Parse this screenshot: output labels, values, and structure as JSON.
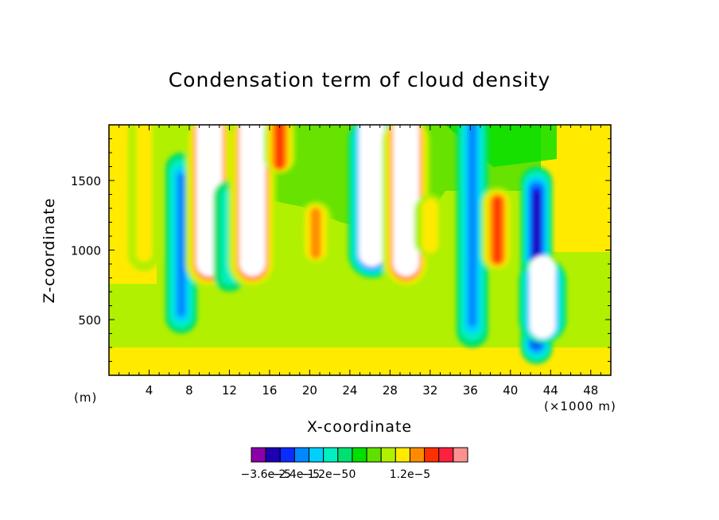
{
  "chart_data": {
    "type": "heatmap",
    "title": "Condensation term of cloud density",
    "xlabel": "X-coordinate",
    "ylabel": "Z-coordinate",
    "x_unit": "(m)",
    "x_scale_label": "(×1000 m)",
    "xlim": [
      0,
      50
    ],
    "ylim": [
      100,
      1900
    ],
    "x_ticks": [
      "4",
      "8",
      "12",
      "16",
      "20",
      "24",
      "28",
      "32",
      "36",
      "40",
      "44",
      "48"
    ],
    "x_tick_values": [
      4,
      8,
      12,
      16,
      20,
      24,
      28,
      32,
      36,
      40,
      44,
      48
    ],
    "y_ticks": [
      "500",
      "1000",
      "1500"
    ],
    "y_tick_values": [
      500,
      1000,
      1500
    ],
    "colorbar": {
      "labels": [
        "−3.6e−5",
        "−2.4e−5",
        "−1.2e−5",
        "0",
        "1.2e−5"
      ],
      "label_values": [
        -3.6e-05,
        -2.4e-05,
        -1.2e-05,
        0,
        1.2e-05
      ],
      "levels": [
        -4.2e-05,
        -3.6e-05,
        -3e-05,
        -2.4e-05,
        -1.8e-05,
        -1.2e-05,
        -6e-06,
        0,
        3e-06,
        6e-06,
        9e-06,
        1.2e-05,
        1.5e-05,
        1.8e-05,
        2.1e-05
      ],
      "colors": [
        "#8b00a8",
        "#1c00b4",
        "#0a2cff",
        "#0088ff",
        "#00d0ff",
        "#00f0c0",
        "#00e070",
        "#00e000",
        "#60e000",
        "#b0f000",
        "#ffea00",
        "#ff8c00",
        "#ff3000",
        "#ff2040",
        "#ff9090"
      ]
    },
    "features": [
      {
        "kind": "positive_column",
        "x": 3.5,
        "z_top": 1900,
        "z_bottom": 850,
        "value": 1e-05
      },
      {
        "kind": "negative_column",
        "x": 7.2,
        "z_top": 1700,
        "z_bottom": 400,
        "value": -2.5e-05
      },
      {
        "kind": "out_of_range_positive",
        "x": 10.0,
        "z_top": 1900,
        "z_bottom": 730,
        "value": 3e-05
      },
      {
        "kind": "negative_column",
        "x": 12.0,
        "z_top": 1500,
        "z_bottom": 700,
        "value": -1.2e-05
      },
      {
        "kind": "out_of_range_positive",
        "x": 14.3,
        "z_top": 1900,
        "z_bottom": 730,
        "value": 3e-05
      },
      {
        "kind": "positive_column",
        "x": 17.0,
        "z_top": 1900,
        "z_bottom": 1550,
        "value": 1.5e-05
      },
      {
        "kind": "positive_column",
        "x": 20.6,
        "z_top": 1350,
        "z_bottom": 900,
        "value": 1.4e-05
      },
      {
        "kind": "out_of_range_negative",
        "x": 26.2,
        "z_top": 1900,
        "z_bottom": 800,
        "value": -4.5e-05
      },
      {
        "kind": "out_of_range_positive",
        "x": 29.6,
        "z_top": 1900,
        "z_bottom": 730,
        "value": 3e-05
      },
      {
        "kind": "positive_column",
        "x": 32.0,
        "z_top": 1400,
        "z_bottom": 950,
        "value": 1e-05
      },
      {
        "kind": "negative_column",
        "x": 36.2,
        "z_top": 1900,
        "z_bottom": 300,
        "value": -2.8e-05
      },
      {
        "kind": "positive_column",
        "x": 38.7,
        "z_top": 1450,
        "z_bottom": 850,
        "value": 1.5e-05
      },
      {
        "kind": "negative_column",
        "x": 42.6,
        "z_top": 1600,
        "z_bottom": 180,
        "value": -3.6e-05
      },
      {
        "kind": "out_of_range_negative",
        "x": 43.2,
        "z_top": 950,
        "z_bottom": 330,
        "value": -4.5e-05
      }
    ]
  }
}
